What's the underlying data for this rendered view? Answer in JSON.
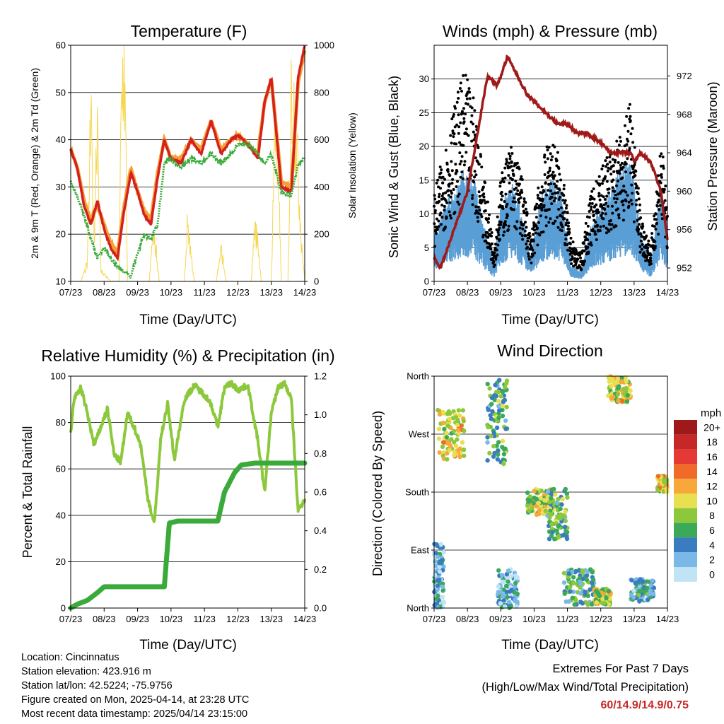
{
  "panels": {
    "temperature": {
      "title": "Temperature (F)",
      "xlabel": "Time (Day/UTC)",
      "ylabel_left": "2m & 9m T (Red, Orange) & 2m Td (Green)",
      "ylabel_right": "Solar Insolation (Yellow)"
    },
    "winds": {
      "title": "Winds (mph) & Pressure (mb)",
      "xlabel": "Time (Day/UTC)",
      "ylabel_left": "Sonic Wind & Gust (Blue, Black)",
      "ylabel_right": "Station Pressure (Maroon)"
    },
    "humidity": {
      "title": "Relative Humidity (%) & Precipitation (in)",
      "xlabel": "Time (Day/UTC)",
      "ylabel_left": "Percent & Total Rainfall"
    },
    "direction": {
      "title": "Wind Direction",
      "xlabel": "Time (Day/UTC)",
      "ylabel_left": "Direction (Colored By Speed)",
      "legend_title": "mph"
    }
  },
  "info": {
    "location": "Location: Cincinnatus",
    "elevation": "Station elevation: 423.916 m",
    "latlon": "Station lat/lon: 42.5224; -75.9756",
    "created": "Figure created on Mon, 2025-04-14, at 23:28 UTC",
    "recent": "Most recent data timestamp: 2025/04/14 23:15:00"
  },
  "extremes": {
    "line1": "Extremes For Past 7 Days",
    "line2": "(High/Low/Max Wind/Total Precipitation)",
    "values": "60/14.9/14.9/0.75"
  },
  "colors": {
    "temp2m": "#d42020",
    "temp9m": "#f5a030",
    "dewpoint": "#3aaa3a",
    "solar": "#f6d650",
    "wind": "#5a9ed6",
    "gust": "#000000",
    "pressure": "#a01a1a",
    "rh": "#8cc83c",
    "precip": "#3aaa3a"
  },
  "chart_data": [
    {
      "type": "line",
      "id": "temperature",
      "x_ticks": [
        "07/23",
        "08/23",
        "09/23",
        "10/23",
        "11/23",
        "12/23",
        "13/23",
        "14/23"
      ],
      "xlim": [
        7,
        14
      ],
      "ylim": [
        10,
        60
      ],
      "y_ticks": [
        10,
        20,
        30,
        40,
        50,
        60
      ],
      "y2lim": [
        0,
        1000
      ],
      "y2_ticks": [
        0,
        200,
        400,
        600,
        800,
        1000
      ],
      "grid": true,
      "series": [
        {
          "key": "temp9m",
          "axis": "left",
          "x": [
            7.0,
            7.2,
            7.4,
            7.6,
            7.8,
            8.0,
            8.2,
            8.4,
            8.6,
            8.8,
            9.0,
            9.2,
            9.4,
            9.6,
            9.8,
            10.0,
            10.3,
            10.6,
            10.9,
            11.2,
            11.5,
            11.8,
            12.0,
            12.3,
            12.6,
            12.8,
            13.0,
            13.3,
            13.6,
            13.8,
            14.0
          ],
          "y": [
            38,
            34,
            27,
            23,
            26,
            22,
            18,
            16,
            26,
            34,
            29,
            25,
            23,
            33,
            40,
            36,
            36,
            40,
            38,
            44,
            38,
            40,
            41,
            39,
            37,
            48,
            53,
            31,
            30,
            52,
            59
          ]
        },
        {
          "key": "temp2m",
          "axis": "left",
          "x": [
            7.0,
            7.2,
            7.4,
            7.6,
            7.8,
            8.0,
            8.2,
            8.4,
            8.6,
            8.8,
            9.0,
            9.2,
            9.4,
            9.6,
            9.8,
            10.0,
            10.3,
            10.6,
            10.9,
            11.2,
            11.5,
            11.8,
            12.0,
            12.3,
            12.6,
            12.8,
            13.0,
            13.3,
            13.6,
            13.8,
            14.0
          ],
          "y": [
            38,
            34,
            26,
            22,
            27,
            21,
            17,
            15,
            25,
            33,
            29,
            24,
            22,
            32,
            40,
            36,
            35,
            40,
            37,
            44,
            37,
            40,
            41,
            39,
            36,
            48,
            53,
            30,
            29,
            53,
            60
          ]
        },
        {
          "key": "dewpoint",
          "axis": "left",
          "x": [
            7.0,
            7.2,
            7.4,
            7.6,
            7.8,
            8.0,
            8.2,
            8.4,
            8.6,
            8.8,
            9.0,
            9.2,
            9.4,
            9.6,
            9.8,
            10.0,
            10.3,
            10.6,
            10.9,
            11.2,
            11.5,
            11.8,
            12.0,
            12.3,
            12.6,
            12.8,
            13.0,
            13.3,
            13.6,
            13.8,
            14.0
          ],
          "y": [
            31,
            28,
            24,
            19,
            15,
            17,
            15,
            13,
            12,
            11,
            16,
            20,
            19,
            22,
            35,
            36,
            34,
            36,
            35,
            37,
            35,
            37,
            39,
            39,
            37,
            35,
            37,
            29,
            28,
            35,
            36
          ]
        },
        {
          "key": "solar",
          "axis": "right",
          "x": [
            7.0,
            7.3,
            7.5,
            7.6,
            7.7,
            7.8,
            7.9,
            8.2,
            8.45,
            8.5,
            8.55,
            8.6,
            8.65,
            8.7,
            8.9,
            9.35,
            9.45,
            9.55,
            9.65,
            10.4,
            10.5,
            10.6,
            10.7,
            11.35,
            11.5,
            11.65,
            12.4,
            12.5,
            12.6,
            12.7,
            13.0,
            13.1,
            13.2,
            13.3,
            13.5,
            13.6,
            13.7,
            13.8,
            13.9,
            14.0
          ],
          "y": [
            0,
            0,
            80,
            750,
            200,
            820,
            50,
            0,
            0,
            700,
            950,
            1000,
            600,
            0,
            0,
            0,
            200,
            150,
            0,
            0,
            280,
            120,
            0,
            0,
            150,
            0,
            0,
            250,
            180,
            0,
            0,
            700,
            500,
            0,
            0,
            900,
            780,
            500,
            200,
            0
          ]
        }
      ]
    },
    {
      "type": "line",
      "id": "winds",
      "x_ticks": [
        "07/23",
        "08/23",
        "09/23",
        "10/23",
        "11/23",
        "12/23",
        "13/23",
        "14/23"
      ],
      "xlim": [
        7,
        14
      ],
      "ylim": [
        0,
        35
      ],
      "y_ticks": [
        0,
        5,
        10,
        15,
        20,
        25,
        30
      ],
      "y2lim": [
        950.6,
        975.2
      ],
      "y2_ticks": [
        952,
        956,
        960,
        964,
        968,
        972
      ],
      "grid": true,
      "series": [
        {
          "key": "wind",
          "axis": "left",
          "x": [
            7.0,
            7.3,
            7.6,
            7.9,
            8.2,
            8.5,
            8.8,
            9.0,
            9.3,
            9.6,
            9.9,
            10.2,
            10.5,
            10.8,
            11.1,
            11.4,
            11.7,
            12.0,
            12.3,
            12.6,
            12.9,
            13.2,
            13.5,
            13.8,
            14.0
          ],
          "y": [
            5,
            8,
            10,
            12,
            11,
            6,
            2,
            8,
            11,
            8,
            3,
            9,
            11,
            10,
            2,
            1,
            6,
            8,
            10,
            12,
            13,
            5,
            2,
            10,
            6
          ]
        },
        {
          "key": "gust",
          "axis": "left",
          "x": [
            7.0,
            7.3,
            7.6,
            7.9,
            8.2,
            8.5,
            8.8,
            9.0,
            9.3,
            9.6,
            9.9,
            10.2,
            10.5,
            10.8,
            11.1,
            11.4,
            11.7,
            12.0,
            12.3,
            12.6,
            12.9,
            13.2,
            13.5,
            13.8,
            14.0
          ],
          "y": [
            10,
            15,
            20,
            24,
            21,
            12,
            4,
            12,
            16,
            13,
            5,
            13,
            17,
            14,
            5,
            3,
            10,
            13,
            15,
            17,
            21,
            8,
            4,
            17,
            9
          ]
        },
        {
          "key": "pressure",
          "axis": "right",
          "x": [
            7.0,
            7.2,
            7.5,
            7.8,
            8.0,
            8.3,
            8.6,
            8.9,
            9.2,
            9.5,
            9.8,
            10.1,
            10.4,
            10.7,
            11.0,
            11.3,
            11.6,
            12.0,
            12.3,
            12.6,
            12.9,
            13.0,
            13.2,
            13.5,
            13.8,
            14.0
          ],
          "y": [
            953,
            952,
            955,
            958,
            960,
            966,
            972,
            971,
            974,
            972,
            970,
            969,
            968,
            967,
            967,
            966,
            966,
            965,
            964,
            964,
            964,
            963,
            964,
            963,
            960,
            955
          ]
        }
      ]
    },
    {
      "type": "line",
      "id": "humidity",
      "x_ticks": [
        "07/23",
        "08/23",
        "09/23",
        "10/23",
        "11/23",
        "12/23",
        "13/23",
        "14/23"
      ],
      "xlim": [
        7,
        14
      ],
      "ylim": [
        0,
        100
      ],
      "y_ticks": [
        0,
        20,
        40,
        60,
        80,
        100
      ],
      "y2lim": [
        0,
        1.2
      ],
      "y2_ticks": [
        0.0,
        0.2,
        0.4,
        0.6,
        0.8,
        1.0,
        1.2
      ],
      "grid": true,
      "series": [
        {
          "key": "rh",
          "axis": "left",
          "x": [
            7.0,
            7.1,
            7.3,
            7.5,
            7.7,
            7.9,
            8.1,
            8.3,
            8.5,
            8.7,
            8.9,
            9.1,
            9.3,
            9.5,
            9.7,
            9.9,
            10.1,
            10.4,
            10.7,
            11.0,
            11.2,
            11.4,
            11.6,
            11.8,
            12.0,
            12.3,
            12.6,
            12.8,
            13.0,
            13.2,
            13.4,
            13.6,
            13.8,
            14.0
          ],
          "y": [
            76,
            90,
            95,
            84,
            70,
            78,
            86,
            66,
            63,
            84,
            78,
            70,
            48,
            36,
            74,
            88,
            64,
            90,
            96,
            92,
            88,
            78,
            95,
            97,
            94,
            96,
            72,
            50,
            84,
            95,
            97,
            90,
            42,
            47
          ]
        },
        {
          "key": "precip",
          "axis": "right",
          "x": [
            7.0,
            7.2,
            7.5,
            7.8,
            8.0,
            9.5,
            9.8,
            9.95,
            10.2,
            10.5,
            11.0,
            11.4,
            11.6,
            11.9,
            12.1,
            12.5,
            13.0,
            13.5,
            14.0
          ],
          "y": [
            0.0,
            0.02,
            0.04,
            0.08,
            0.11,
            0.11,
            0.11,
            0.44,
            0.45,
            0.45,
            0.45,
            0.45,
            0.6,
            0.7,
            0.74,
            0.75,
            0.75,
            0.75,
            0.75
          ]
        }
      ]
    },
    {
      "type": "scatter",
      "id": "direction",
      "x_ticks": [
        "07/23",
        "08/23",
        "09/23",
        "10/23",
        "11/23",
        "12/23",
        "13/23",
        "14/23"
      ],
      "xlim": [
        7,
        14
      ],
      "y_ticks": [
        "North",
        "West",
        "South",
        "East",
        "North"
      ],
      "y_tick_values": [
        360,
        270,
        180,
        90,
        0
      ],
      "ylim": [
        0,
        360
      ],
      "grid": true,
      "color_scale": {
        "labels": [
          "20+",
          "18",
          "16",
          "14",
          "12",
          "10",
          "8",
          "6",
          "4",
          "2",
          "0"
        ],
        "colors": [
          "#9e1a1a",
          "#c62828",
          "#e53935",
          "#f06a2a",
          "#f8a73a",
          "#e8e050",
          "#8cc83c",
          "#3aaa5a",
          "#3a7cc0",
          "#7ab8e8",
          "#c0e4f6"
        ]
      },
      "clusters": [
        {
          "x": [
            7.1,
            7.9
          ],
          "y": [
            230,
            310
          ],
          "speed": 10
        },
        {
          "x": [
            7.0,
            7.3
          ],
          "y": [
            0,
            100
          ],
          "speed": 3
        },
        {
          "x": [
            8.6,
            9.2
          ],
          "y": [
            220,
            360
          ],
          "speed": 6
        },
        {
          "x": [
            8.9,
            9.5
          ],
          "y": [
            0,
            60
          ],
          "speed": 3
        },
        {
          "x": [
            9.8,
            10.6
          ],
          "y": [
            145,
            185
          ],
          "speed": 9
        },
        {
          "x": [
            10.4,
            11.0
          ],
          "y": [
            105,
            185
          ],
          "speed": 6
        },
        {
          "x": [
            10.9,
            11.8
          ],
          "y": [
            5,
            60
          ],
          "speed": 5
        },
        {
          "x": [
            11.8,
            12.3
          ],
          "y": [
            5,
            30
          ],
          "speed": 9
        },
        {
          "x": [
            12.2,
            12.9
          ],
          "y": [
            320,
            360
          ],
          "speed": 10
        },
        {
          "x": [
            12.9,
            13.6
          ],
          "y": [
            10,
            45
          ],
          "speed": 4
        },
        {
          "x": [
            13.7,
            14.0
          ],
          "y": [
            180,
            205
          ],
          "speed": 10
        }
      ]
    }
  ]
}
